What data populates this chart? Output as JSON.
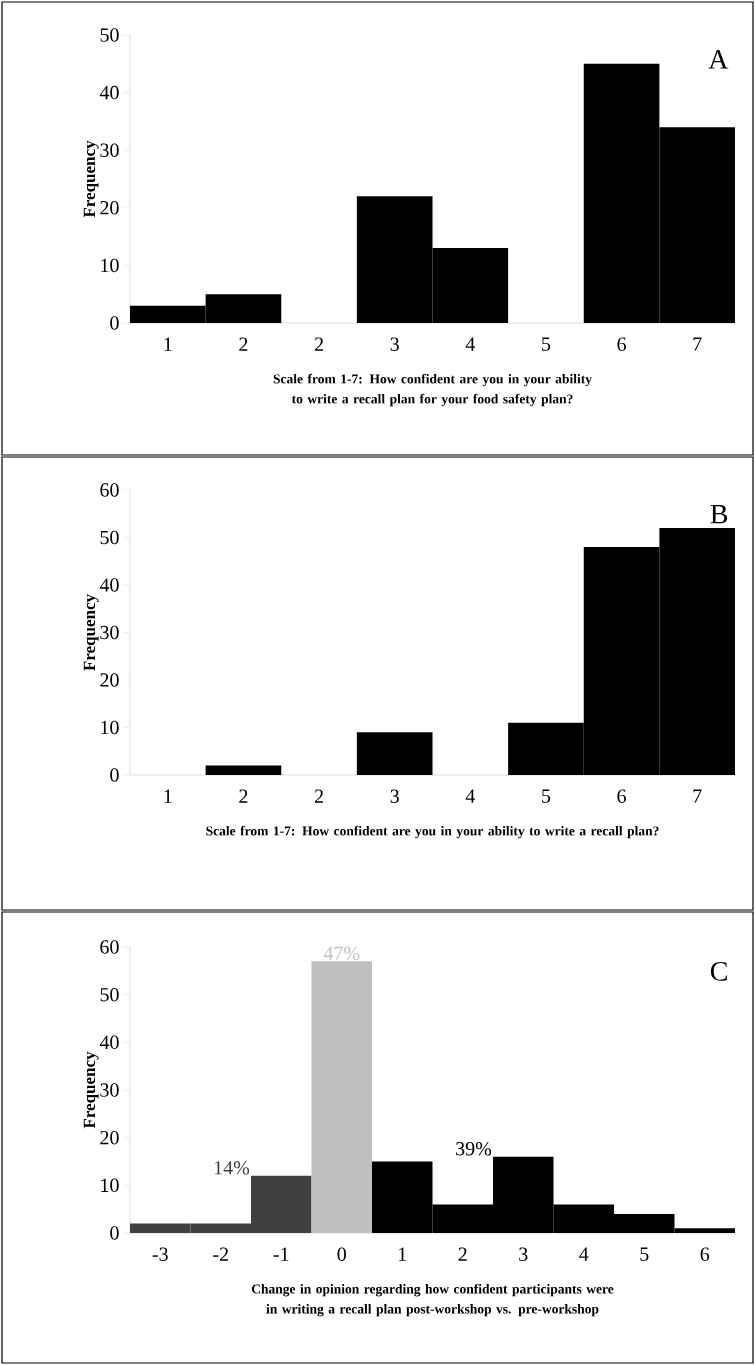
{
  "chart_data": [
    {
      "type": "bar",
      "title": "A",
      "xlabel": "Scale from 1-7: How confident are you in your ability to write a recall plan for your food safety plan?",
      "ylabel": "Frequency",
      "categories": [
        "1",
        "2",
        "2",
        "3",
        "4",
        "5",
        "6",
        "7"
      ],
      "values": [
        3,
        5,
        0,
        22,
        13,
        0,
        45,
        34
      ],
      "colors": [
        "#000000",
        "#000000",
        "#000000",
        "#000000",
        "#000000",
        "#000000",
        "#000000",
        "#000000"
      ],
      "ylim": [
        0,
        50
      ],
      "yticks": [
        0,
        10,
        20,
        30,
        40,
        50
      ]
    },
    {
      "type": "bar",
      "title": "B",
      "xlabel": "Scale from 1-7: How confident are you in your ability to write a recall plan?",
      "ylabel": "Frequency",
      "categories": [
        "1",
        "2",
        "2",
        "3",
        "4",
        "5",
        "6",
        "7"
      ],
      "values": [
        0,
        2,
        0,
        9,
        0,
        11,
        48,
        52
      ],
      "colors": [
        "#000000",
        "#000000",
        "#000000",
        "#000000",
        "#000000",
        "#000000",
        "#000000",
        "#000000"
      ],
      "ylim": [
        0,
        60
      ],
      "yticks": [
        0,
        10,
        20,
        30,
        40,
        50,
        60
      ]
    },
    {
      "type": "bar",
      "title": "C",
      "xlabel": "Change in opinion regarding how confident participants were in writing a recall plan post-workshop vs. pre-workshop",
      "ylabel": "Frequency",
      "categories": [
        "-3",
        "-2",
        "-1",
        "0",
        "1",
        "2",
        "3",
        "4",
        "5",
        "6"
      ],
      "values": [
        2,
        2,
        12,
        57,
        15,
        6,
        16,
        6,
        4,
        1
      ],
      "colors": [
        "#404040",
        "#404040",
        "#404040",
        "#bfbfbf",
        "#000000",
        "#000000",
        "#000000",
        "#000000",
        "#000000",
        "#000000"
      ],
      "ylim": [
        0,
        60
      ],
      "yticks": [
        0,
        10,
        20,
        30,
        40,
        50,
        60
      ],
      "annotations": [
        {
          "text": "14%",
          "x": "-1",
          "y": 12
        },
        {
          "text": "47%",
          "x": "0",
          "y": 57
        },
        {
          "text": "39%",
          "x": "3",
          "y": 16
        }
      ]
    }
  ]
}
